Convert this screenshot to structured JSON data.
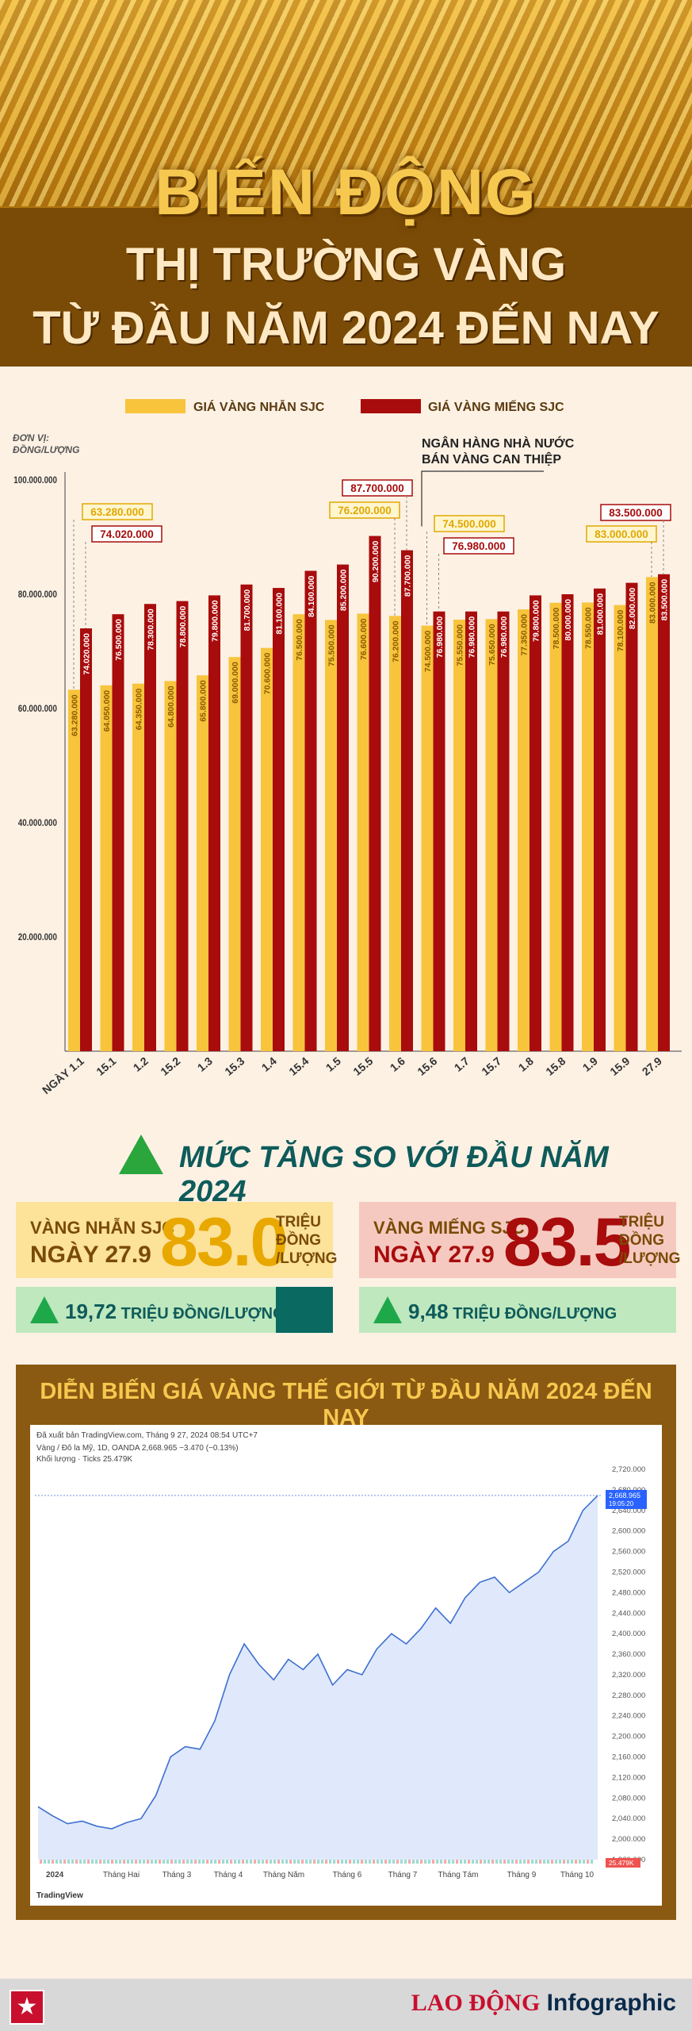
{
  "header": {
    "title_line1": "BIẾN ĐỘNG",
    "title_line2": "THỊ TRƯỜNG VÀNG",
    "title_line3": "TỪ ĐẦU NĂM 2024 ĐẾN NAY"
  },
  "colors": {
    "ring": "#f7c43c",
    "bar": "#a80c0c",
    "accent_green": "#2aa63c",
    "dark_teal": "#0e5b5a",
    "brown": "#8a5a12"
  },
  "chart_data": [
    {
      "type": "bar",
      "unit_label_line1": "ĐƠN VỊ:",
      "unit_label_line2": "ĐỒNG/LƯỢNG",
      "categories": [
        "NGÀY 1.1",
        "15.1",
        "1.2",
        "15.2",
        "1.3",
        "15.3",
        "1.4",
        "15.4",
        "1.5",
        "15.5",
        "1.6",
        "15.6",
        "1.7",
        "15.7",
        "1.8",
        "15.8",
        "1.9",
        "15.9",
        "27.9"
      ],
      "ylim": [
        0,
        100000000
      ],
      "yticks": [
        20000000,
        40000000,
        60000000,
        80000000,
        100000000
      ],
      "ytick_labels": [
        "20.000.000",
        "40.000.000",
        "60.000.000",
        "80.000.000",
        "100.000.000"
      ],
      "series": [
        {
          "name": "GIÁ VÀNG NHẪN SJC",
          "color": "#f7c43c",
          "values": [
            63280000,
            64050000,
            64350000,
            64800000,
            65800000,
            69000000,
            70600000,
            76500000,
            75500000,
            76600000,
            76200000,
            74500000,
            75550000,
            75650000,
            77350000,
            78500000,
            78550000,
            78100000,
            83000000
          ],
          "labels": [
            "63.280.000",
            "64.050.000",
            "64.350.000",
            "64.800.000",
            "65.800.000",
            "69.000.000",
            "70.600.000",
            "76.500.000",
            "75.500.000",
            "76.600.000",
            "76.200.000",
            "74.500.000",
            "75.550.000",
            "75.650.000",
            "77.350.000",
            "78.500.000",
            "78.550.000",
            "78.100.000",
            "83.000.000"
          ]
        },
        {
          "name": "GIÁ VÀNG MIẾNG SJC",
          "color": "#a80c0c",
          "values": [
            74020000,
            76500000,
            78300000,
            78800000,
            79800000,
            81700000,
            81100000,
            84100000,
            85200000,
            90200000,
            87700000,
            76980000,
            76980000,
            76980000,
            79800000,
            80000000,
            81000000,
            82000000,
            83500000
          ],
          "labels": [
            "74.020.000",
            "76.500.000",
            "78.300.000",
            "78.800.000",
            "79.800.000",
            "81.700.000",
            "81.100.000",
            "84.100.000",
            "85.200.000",
            "90.200.000",
            "87.700.000",
            "76.980.000",
            "76.980.000",
            "76.980.000",
            "79.800.000",
            "80.000.000",
            "81.000.000",
            "82.000.000",
            "83.500.000"
          ]
        }
      ],
      "annotation": {
        "line1": "NGÂN HÀNG NHÀ NƯỚC",
        "line2": "BÁN VÀNG CAN THIỆP"
      }
    },
    {
      "type": "area",
      "title": "DIỄN BIẾN GIÁ VÀNG THẾ GIỚI TỪ ĐẦU NĂM 2024 ĐẾN NAY",
      "source": "Đã xuất bản TradingView.com, Tháng 9 27, 2024 08:54 UTC+7",
      "symbol_line": "Vàng / Đô la Mỹ, 1D, OANDA  2,668.965  −3.470 (−0.13%)",
      "volume_line": "Khối lượng · Ticks  25.479K",
      "price_tag": "2,668.965",
      "price_tag_time": "19:05:20",
      "volume_tag": "25.479K",
      "brand": "TradingView",
      "ylim": [
        1960,
        2720
      ],
      "ytick_labels": [
        "1,960.000",
        "2,000.000",
        "2,040.000",
        "2,080.000",
        "2,120.000",
        "2,160.000",
        "2,200.000",
        "2,240.000",
        "2,280.000",
        "2,320.000",
        "2,360.000",
        "2,400.000",
        "2,440.000",
        "2,480.000",
        "2,520.000",
        "2,560.000",
        "2,600.000",
        "2,640.000",
        "2,680.000",
        "2,720.000"
      ],
      "xtick_labels": [
        "2024",
        "Tháng Hai",
        "Tháng 3",
        "Tháng 4",
        "Tháng Năm",
        "Tháng 6",
        "Tháng 7",
        "Tháng Tám",
        "Tháng 9",
        "Tháng 10"
      ],
      "x": [
        0,
        1,
        2,
        3,
        4,
        5,
        6,
        7,
        8,
        9,
        10,
        11,
        12,
        13,
        14,
        15,
        16,
        17,
        18,
        19,
        20,
        21,
        22,
        23,
        24,
        25,
        26,
        27,
        28,
        29,
        30,
        31,
        32,
        33,
        34,
        35,
        36,
        37,
        38
      ],
      "values": [
        2063,
        2045,
        2030,
        2035,
        2025,
        2020,
        2032,
        2040,
        2085,
        2160,
        2180,
        2175,
        2230,
        2320,
        2380,
        2340,
        2310,
        2350,
        2330,
        2360,
        2300,
        2330,
        2320,
        2370,
        2400,
        2380,
        2410,
        2450,
        2420,
        2470,
        2500,
        2510,
        2480,
        2500,
        2520,
        2560,
        2580,
        2640,
        2669
      ]
    }
  ],
  "increase": {
    "title": "MỨC TĂNG SO VỚI ĐẦU NĂM 2024",
    "ring_card": {
      "label": "VÀNG NHẪN SJC",
      "date": "NGÀY 27.9",
      "value": "83.0",
      "unit1": "TRIỆU",
      "unit2": "ĐỒNG",
      "unit3": "/LƯỢNG"
    },
    "bar_card": {
      "label": "VÀNG MIẾNG SJC",
      "date": "NGÀY 27.9",
      "value": "83.5",
      "unit1": "TRIỆU",
      "unit2": "ĐỒNG",
      "unit3": "/LƯỢNG"
    },
    "ring_increase": {
      "value": "19,72",
      "unit": "TRIỆU ĐỒNG/LƯỢNG"
    },
    "bar_increase": {
      "value": "9,48",
      "unit": "TRIỆU ĐỒNG/LƯỢNG"
    }
  },
  "footer": {
    "brand1": "LAO ĐỘNG",
    "brand2": "Infographic",
    "star": "★"
  }
}
